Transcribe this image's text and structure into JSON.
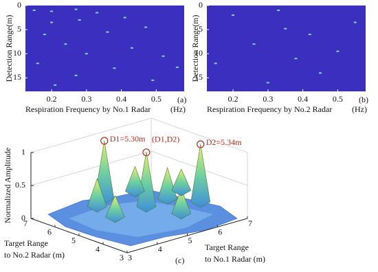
{
  "chart_data": [
    {
      "type": "heatmap",
      "panel_label": "(a)",
      "xlabel": "Respiration Frequency by No.1  Radar",
      "xunit": "(Hz)",
      "ylabel": "Detection Range(m)",
      "xlim": [
        0.125,
        0.58
      ],
      "ylim": [
        0,
        17.8
      ],
      "xticks": [
        0.2,
        0.3,
        0.4,
        0.5
      ],
      "yticks": [
        0,
        5,
        10,
        15
      ],
      "background": "#3b2fbf",
      "point_color": "#7fd6c8",
      "points": {
        "x": [
          0.15,
          0.2,
          0.27,
          0.33,
          0.2,
          0.28,
          0.41,
          0.18,
          0.36,
          0.47,
          0.24,
          0.43,
          0.3,
          0.52,
          0.16,
          0.38,
          0.27,
          0.49,
          0.21,
          0.56
        ],
        "y": [
          1,
          1.2,
          0.8,
          1.5,
          3.5,
          3,
          2.5,
          6,
          5.5,
          4.5,
          8,
          8.8,
          10,
          10.5,
          12,
          13,
          14.5,
          15.5,
          16.5,
          12.8
        ]
      }
    },
    {
      "type": "heatmap",
      "panel_label": "(b)",
      "xlabel": "Respiration Frequency by No.2  Radar",
      "xunit": "(Hz)",
      "ylabel": "Detection Range(m)",
      "xlim": [
        0.125,
        0.58
      ],
      "ylim": [
        0,
        17.8
      ],
      "xticks": [
        0.2,
        0.3,
        0.4,
        0.5
      ],
      "yticks": [
        0,
        5,
        10,
        15
      ],
      "background": "#3b2fbf",
      "point_color": "#7fd6c8",
      "points": {
        "x": [
          0.2,
          0.33,
          0.35,
          0.42,
          0.26,
          0.5,
          0.15,
          0.45,
          0.3,
          0.55,
          0.38
        ],
        "y": [
          2,
          1,
          4.8,
          6,
          8,
          9.5,
          12,
          14,
          16,
          3.5,
          11
        ]
      }
    },
    {
      "type": "surface3d",
      "panel_label": "(c)",
      "zlabel": "Normalized Amplitude",
      "xlabel": [
        "Target Range",
        "to No.1 Radar (m)"
      ],
      "ylabel": [
        "Target Range",
        "to No.2 Radar (m)"
      ],
      "xlim": [
        3,
        7
      ],
      "ylim": [
        3,
        7
      ],
      "zlim": [
        0,
        1
      ],
      "xticks": [
        3,
        4,
        5,
        6,
        7
      ],
      "yticks": [
        3,
        4,
        5,
        6,
        7
      ],
      "zticks": [
        0,
        0.5,
        1
      ],
      "peaks": {
        "x": [
          4.96,
          5.31,
          6.56,
          4.4,
          5.9,
          6.1,
          4.2,
          5.6,
          6.8
        ],
        "y": [
          6.4,
          5.09,
          4.4,
          6.0,
          6.3,
          5.2,
          5.0,
          4.0,
          5.5
        ],
        "z": [
          1,
          0.95,
          1,
          0.55,
          0.5,
          0.6,
          0.45,
          0.5,
          0.45
        ],
        "labels": [
          "D1=5.30m",
          "(D1,D2)",
          "D2=5.34m",
          null,
          null,
          null,
          null,
          null,
          null
        ]
      }
    }
  ]
}
